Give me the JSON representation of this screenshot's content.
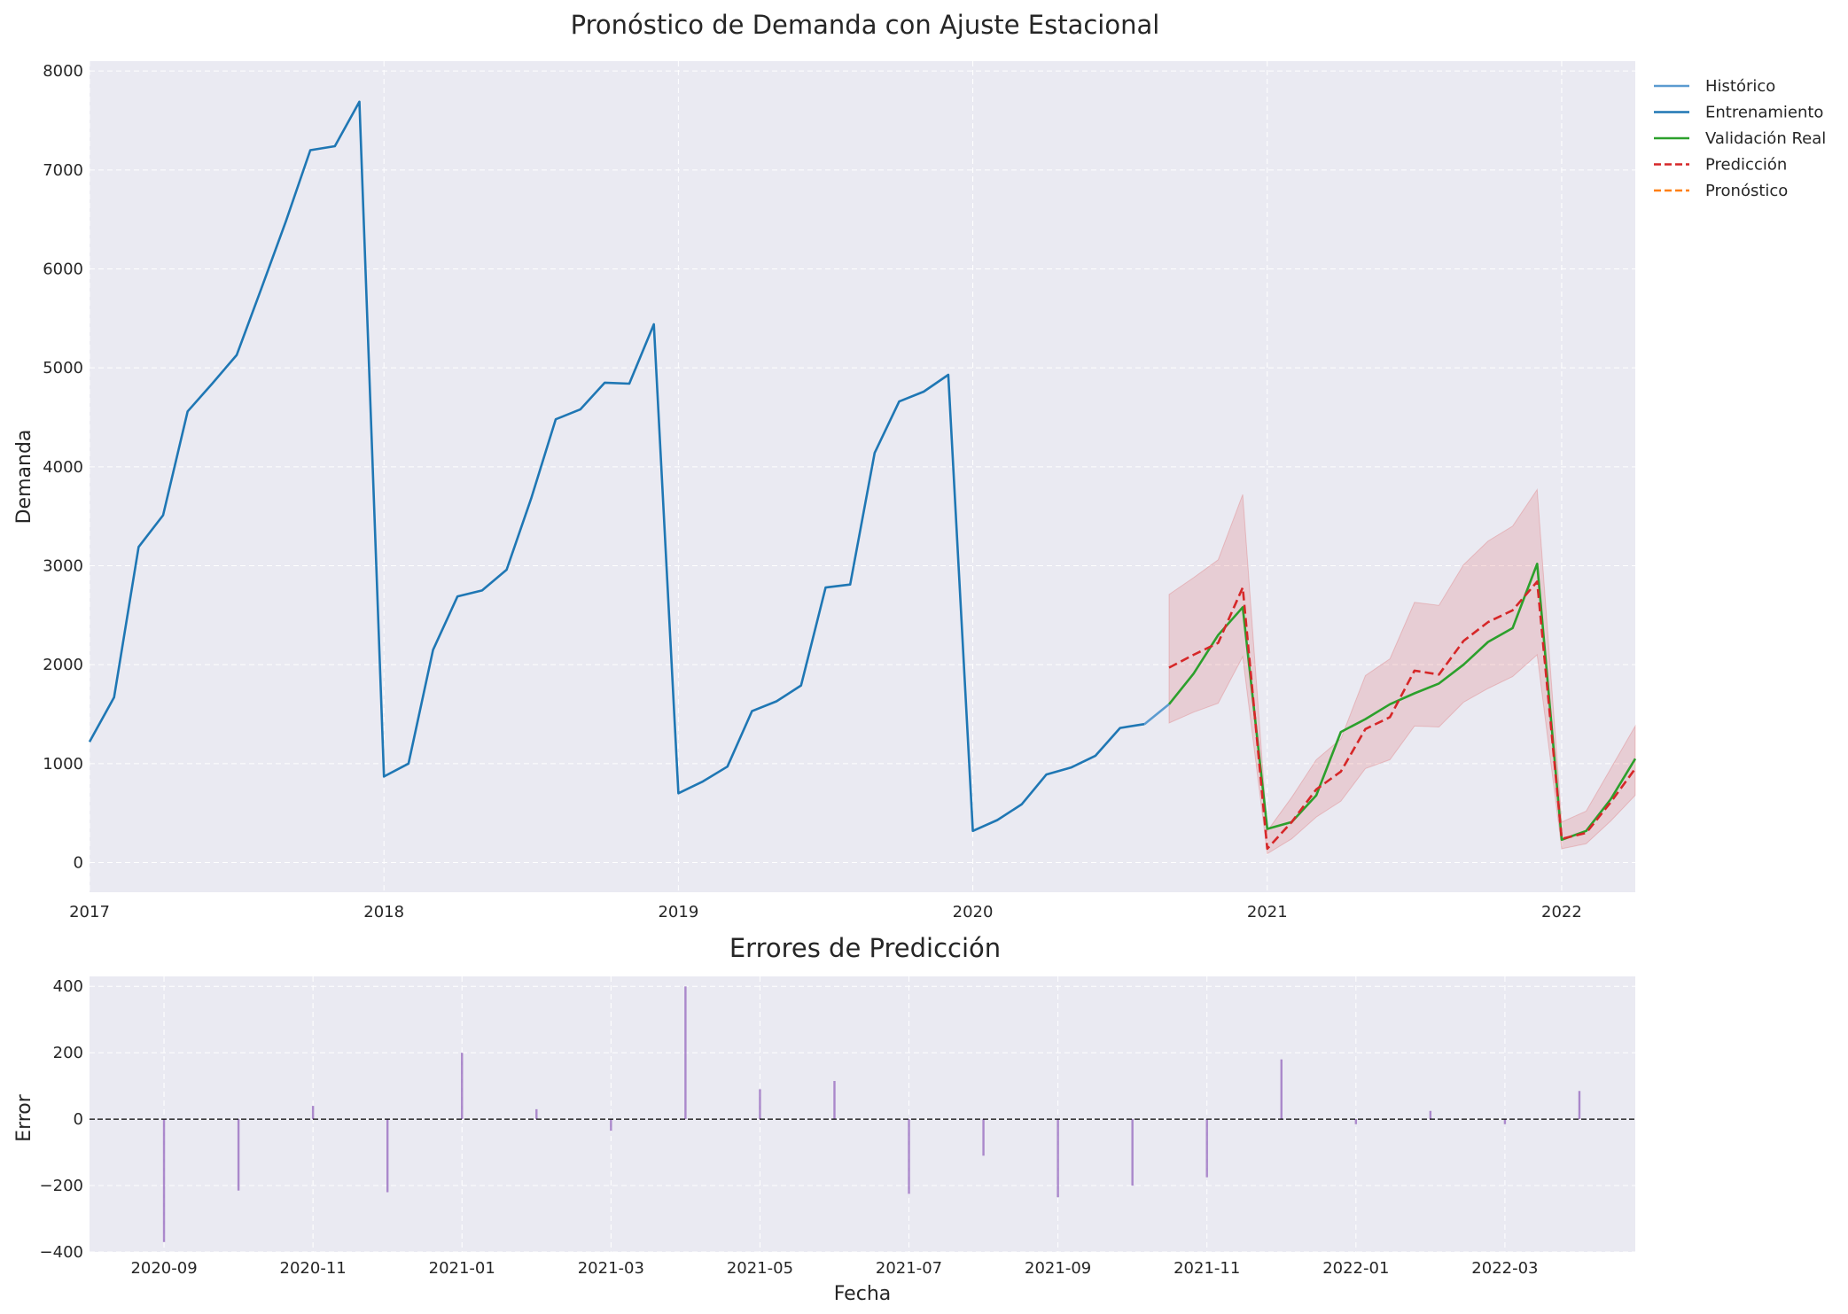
{
  "chart_data": [
    {
      "type": "line",
      "title": "Pronóstico de Demanda con Ajuste Estacional",
      "xlabel": "",
      "ylabel": "Demanda",
      "x_start": "2017-01",
      "xlim_months": [
        0,
        63
      ],
      "ylim": [
        -300,
        8100
      ],
      "yticks": [
        0,
        1000,
        2000,
        3000,
        4000,
        5000,
        6000,
        7000,
        8000
      ],
      "ytick_labels": [
        "0",
        "1000",
        "2000",
        "3000",
        "4000",
        "5000",
        "6000",
        "7000",
        "8000"
      ],
      "xticks_months": [
        0,
        12,
        24,
        36,
        48,
        60
      ],
      "xtick_labels": [
        "2017",
        "2018",
        "2019",
        "2020",
        "2021",
        "2022"
      ],
      "legend_position": "outside-right-top",
      "legend": [
        "Histórico",
        "Entrenamiento",
        "Validación Real",
        "Predicción",
        "Pronóstico"
      ],
      "colors": {
        "historico": "#5b9bd0",
        "entrenamiento": "#1f77b4",
        "validacion": "#2ca02c",
        "prediccion": "#d62728",
        "pronostico": "#ff7f0e",
        "band": "#d62728",
        "plot_bg": "#eaeaf2"
      },
      "series": [
        {
          "name": "Entrenamiento",
          "start_month": 0,
          "values": [
            1220,
            1670,
            3190,
            3510,
            4560,
            4840,
            5130,
            5800,
            6480,
            7200,
            7240,
            7690,
            870,
            1000,
            2150,
            2690,
            2750,
            2960,
            3680,
            4480,
            4580,
            4850,
            4840,
            5440,
            700,
            820,
            970,
            1530,
            1630,
            1790,
            2780,
            2810,
            4140,
            4660,
            4760,
            4930,
            320,
            430,
            590,
            890,
            960,
            1080,
            1360,
            1400
          ]
        },
        {
          "name": "Histórico",
          "start_month": 43,
          "values": [
            1400,
            1600
          ]
        },
        {
          "name": "Validación Real",
          "start_month": 44,
          "values": [
            1600,
            1910,
            2300,
            2580,
            340,
            410,
            680,
            1320,
            1450,
            1600,
            1710,
            1810,
            2000,
            2230,
            2370,
            3020,
            230,
            320,
            640,
            1050
          ]
        },
        {
          "name": "Predicción",
          "start_month": 44,
          "values": [
            1970,
            2100,
            2220,
            2780,
            140,
            410,
            740,
            920,
            1350,
            1470,
            1940,
            1900,
            2240,
            2430,
            2550,
            2840,
            240,
            300,
            610,
            950
          ]
        },
        {
          "name": "Intervalo",
          "start_month": 44,
          "lower": [
            1410,
            1520,
            1610,
            2080,
            90,
            240,
            460,
            620,
            950,
            1040,
            1380,
            1370,
            1620,
            1760,
            1880,
            2100,
            140,
            190,
            420,
            680
          ],
          "upper": [
            2710,
            2880,
            3060,
            3720,
            320,
            660,
            1040,
            1250,
            1890,
            2060,
            2630,
            2600,
            3010,
            3250,
            3400,
            3770,
            410,
            520,
            950,
            1380
          ]
        }
      ]
    },
    {
      "type": "bar",
      "title": "Errores de Predicción",
      "xlabel": "Fecha",
      "ylabel": "Error",
      "xlim_months": [
        43.0,
        63.75
      ],
      "ylim": [
        -400,
        430
      ],
      "yticks": [
        -400,
        -200,
        0,
        200,
        400
      ],
      "ytick_labels": [
        "−400",
        "−200",
        "0",
        "200",
        "400"
      ],
      "xticks_months": [
        44,
        46,
        48,
        50,
        52,
        54,
        56,
        58,
        60,
        62
      ],
      "xtick_labels": [
        "2020-09",
        "2020-11",
        "2021-01",
        "2021-03",
        "2021-05",
        "2021-07",
        "2021-09",
        "2021-11",
        "2022-01",
        "2022-03"
      ],
      "bar_color": "#9467bd",
      "zero_line": "dashed",
      "errors": [
        {
          "month": 44,
          "value": -370
        },
        {
          "month": 45,
          "value": -215
        },
        {
          "month": 46,
          "value": 40
        },
        {
          "month": 47,
          "value": -220
        },
        {
          "month": 48,
          "value": 200
        },
        {
          "month": 49,
          "value": 30
        },
        {
          "month": 50,
          "value": -35
        },
        {
          "month": 51,
          "value": 400
        },
        {
          "month": 52,
          "value": 90
        },
        {
          "month": 53,
          "value": 115
        },
        {
          "month": 54,
          "value": -225
        },
        {
          "month": 55,
          "value": -110
        },
        {
          "month": 56,
          "value": -235
        },
        {
          "month": 57,
          "value": -200
        },
        {
          "month": 58,
          "value": -175
        },
        {
          "month": 59,
          "value": 180
        },
        {
          "month": 60,
          "value": -15
        },
        {
          "month": 61,
          "value": 25
        },
        {
          "month": 62,
          "value": -15
        },
        {
          "month": 63,
          "value": 85
        }
      ]
    }
  ]
}
